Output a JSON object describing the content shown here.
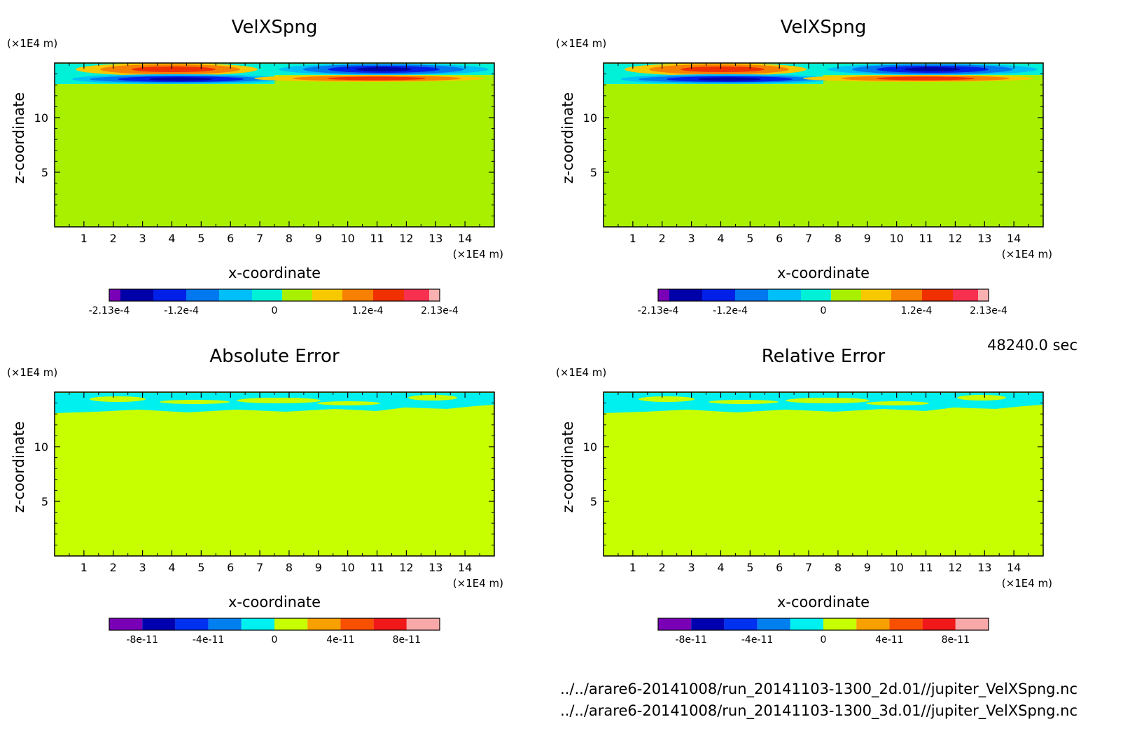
{
  "chart_data": [
    {
      "type": "heatmap",
      "title": "VelXSpng",
      "xlabel": "x-coordinate",
      "ylabel": "z-coordinate",
      "x_unit": "(×1E4 m)",
      "y_unit": "(×1E4 m)",
      "x_ticks": [
        "1",
        "2",
        "3",
        "4",
        "5",
        "6",
        "7",
        "8",
        "9",
        "10",
        "11",
        "12",
        "13",
        "14"
      ],
      "y_ticks": [
        "5",
        "10"
      ],
      "xlim": [
        0,
        15
      ],
      "ylim": [
        0,
        15
      ],
      "field": "velxspng",
      "colorbar": {
        "colors": [
          "#7a00b8",
          "#0000a8",
          "#0020e8",
          "#0078f0",
          "#00bef8",
          "#00f0d8",
          "#a8f000",
          "#f8c800",
          "#f88000",
          "#f03000",
          "#f83050",
          "#f8b0b0"
        ],
        "tick_labels": [
          "-2.13e-4",
          "-1.2e-4",
          "0",
          "1.2e-4",
          "2.13e-4"
        ],
        "tick_values": [
          -0.000213,
          -0.00012,
          0,
          0.00012,
          0.000213
        ],
        "range": [
          -0.000213,
          0.000213
        ]
      }
    },
    {
      "type": "heatmap",
      "title": "VelXSpng",
      "xlabel": "x-coordinate",
      "ylabel": "z-coordinate",
      "x_unit": "(×1E4 m)",
      "y_unit": "(×1E4 m)",
      "x_ticks": [
        "1",
        "2",
        "3",
        "4",
        "5",
        "6",
        "7",
        "8",
        "9",
        "10",
        "11",
        "12",
        "13",
        "14"
      ],
      "y_ticks": [
        "5",
        "10"
      ],
      "xlim": [
        0,
        15
      ],
      "ylim": [
        0,
        15
      ],
      "field": "velxspng",
      "colorbar": {
        "colors": [
          "#7a00b8",
          "#0000a8",
          "#0020e8",
          "#0078f0",
          "#00bef8",
          "#00f0d8",
          "#a8f000",
          "#f8c800",
          "#f88000",
          "#f03000",
          "#f83050",
          "#f8b0b0"
        ],
        "tick_labels": [
          "-2.13e-4",
          "-1.2e-4",
          "0",
          "1.2e-4",
          "2.13e-4"
        ],
        "tick_values": [
          -0.000213,
          -0.00012,
          0,
          0.00012,
          0.000213
        ],
        "range": [
          -0.000213,
          0.000213
        ]
      }
    },
    {
      "type": "heatmap",
      "title": "Absolute Error",
      "xlabel": "x-coordinate",
      "ylabel": "z-coordinate",
      "x_unit": "(×1E4 m)",
      "y_unit": "(×1E4 m)",
      "x_ticks": [
        "1",
        "2",
        "3",
        "4",
        "5",
        "6",
        "7",
        "8",
        "9",
        "10",
        "11",
        "12",
        "13",
        "14"
      ],
      "y_ticks": [
        "5",
        "10"
      ],
      "xlim": [
        0,
        15
      ],
      "ylim": [
        0,
        15
      ],
      "field": "error",
      "colorbar": {
        "colors": [
          "#7a00b8",
          "#0000b0",
          "#0030f0",
          "#0080f0",
          "#00f0f0",
          "#c8ff00",
          "#f8a000",
          "#f85000",
          "#f01818",
          "#f8a8a8"
        ],
        "tick_labels": [
          "-8e-11",
          "-4e-11",
          "0",
          "4e-11",
          "8e-11"
        ],
        "tick_values": [
          -8e-11,
          -4e-11,
          0,
          4e-11,
          8e-11
        ],
        "range": [
          -1e-10,
          1e-10
        ]
      }
    },
    {
      "type": "heatmap",
      "title": "Relative Error",
      "xlabel": "x-coordinate",
      "ylabel": "z-coordinate",
      "x_unit": "(×1E4 m)",
      "y_unit": "(×1E4 m)",
      "x_ticks": [
        "1",
        "2",
        "3",
        "4",
        "5",
        "6",
        "7",
        "8",
        "9",
        "10",
        "11",
        "12",
        "13",
        "14"
      ],
      "y_ticks": [
        "5",
        "10"
      ],
      "xlim": [
        0,
        15
      ],
      "ylim": [
        0,
        15
      ],
      "field": "error",
      "colorbar": {
        "colors": [
          "#7a00b8",
          "#0000b0",
          "#0030f0",
          "#0080f0",
          "#00f0f0",
          "#c8ff00",
          "#f8a000",
          "#f85000",
          "#f01818",
          "#f8a8a8"
        ],
        "tick_labels": [
          "-8e-11",
          "-4e-11",
          "0",
          "4e-11",
          "8e-11"
        ],
        "tick_values": [
          -8e-11,
          -4e-11,
          0,
          4e-11,
          8e-11
        ],
        "range": [
          -1e-10,
          1e-10
        ]
      }
    }
  ],
  "annotations": {
    "time_label": "48240.0 sec",
    "file_2d": "../../arare6-20141008/run_20141103-1300_2d.01//jupiter_VelXSpng.nc",
    "file_3d": "../../arare6-20141008/run_20141103-1300_3d.01//jupiter_VelXSpng.nc"
  }
}
